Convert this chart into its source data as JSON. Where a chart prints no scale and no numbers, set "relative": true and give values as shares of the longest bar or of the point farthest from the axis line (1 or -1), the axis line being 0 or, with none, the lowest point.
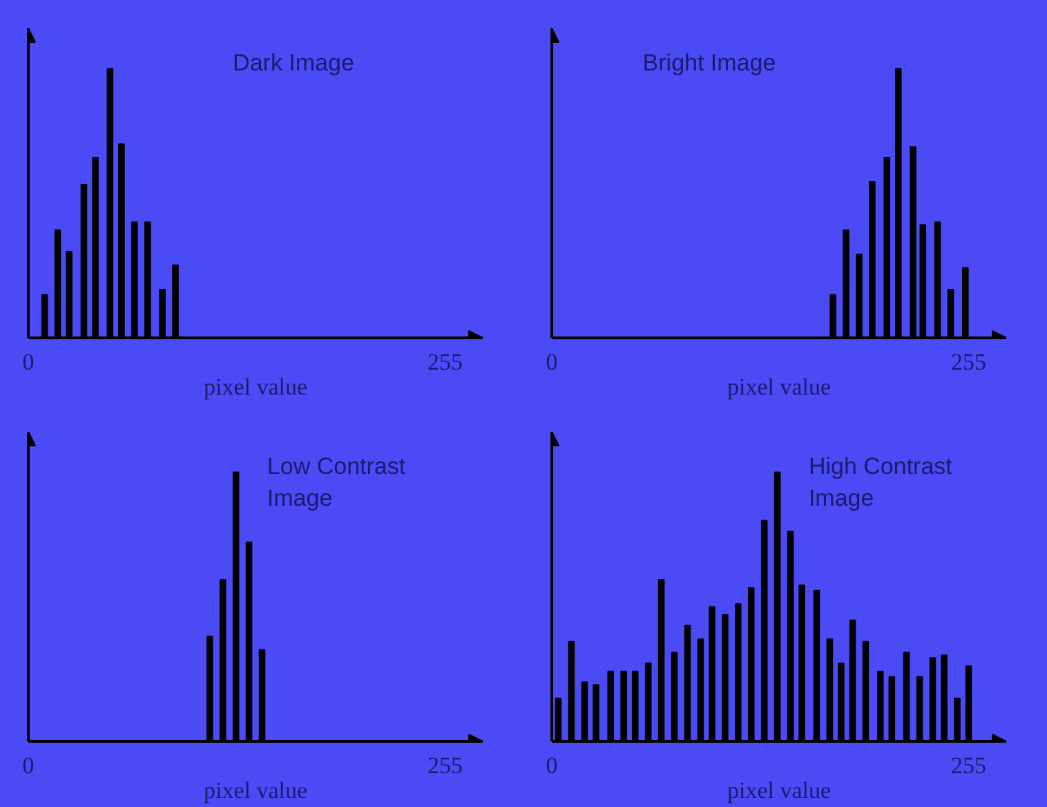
{
  "chart_data": [
    {
      "type": "bar",
      "title": "Dark Image",
      "xlabel": "pixel value",
      "relative": true,
      "color": "#000000",
      "tick_labels": "x",
      "grid": false,
      "xlim": [
        0,
        278
      ],
      "xticks": [
        0,
        255
      ],
      "x": [
        10,
        18,
        25,
        34,
        41,
        50,
        57,
        65,
        73,
        82,
        90
      ],
      "values": [
        0.16,
        0.4,
        0.32,
        0.57,
        0.67,
        1,
        0.72,
        0.43,
        0.43,
        0.18,
        0.27
      ]
    },
    {
      "type": "bar",
      "title": "Bright Image",
      "xlabel": "pixel value",
      "relative": true,
      "color": "#000000",
      "tick_labels": "x",
      "grid": false,
      "xlim": [
        0,
        278
      ],
      "xticks": [
        0,
        255
      ],
      "x": [
        172,
        180,
        188,
        196,
        205,
        212,
        221,
        227,
        236,
        244,
        253
      ],
      "values": [
        0.16,
        0.4,
        0.31,
        0.58,
        0.67,
        1,
        0.71,
        0.42,
        0.43,
        0.18,
        0.26
      ]
    },
    {
      "type": "bar",
      "title": "Low Contrast\nImage",
      "xlabel": "pixel value",
      "relative": true,
      "color": "#000000",
      "tick_labels": "x",
      "grid": false,
      "xlim": [
        0,
        278
      ],
      "xticks": [
        0,
        255
      ],
      "x": [
        111,
        119,
        127,
        135,
        143
      ],
      "values": [
        0.39,
        0.6,
        1,
        0.74,
        0.34
      ]
    },
    {
      "type": "bar",
      "title": "High Contrast\nImage",
      "xlabel": "pixel value",
      "relative": true,
      "color": "#000000",
      "tick_labels": "x",
      "grid": false,
      "xlim": [
        0,
        278
      ],
      "xticks": [
        0,
        255
      ],
      "x": [
        4,
        12,
        20,
        27,
        36,
        44,
        51,
        59,
        67,
        75,
        83,
        91,
        98,
        106,
        114,
        122,
        130,
        138,
        146,
        153,
        162,
        170,
        177,
        184,
        192,
        201,
        208,
        217,
        225,
        233,
        240,
        248,
        255
      ],
      "values": [
        0.16,
        0.37,
        0.22,
        0.21,
        0.26,
        0.26,
        0.26,
        0.29,
        0.6,
        0.33,
        0.43,
        0.38,
        0.5,
        0.47,
        0.51,
        0.57,
        0.82,
        1,
        0.78,
        0.58,
        0.56,
        0.38,
        0.29,
        0.45,
        0.37,
        0.26,
        0.24,
        0.33,
        0.24,
        0.31,
        0.32,
        0.16,
        0.28
      ]
    }
  ]
}
